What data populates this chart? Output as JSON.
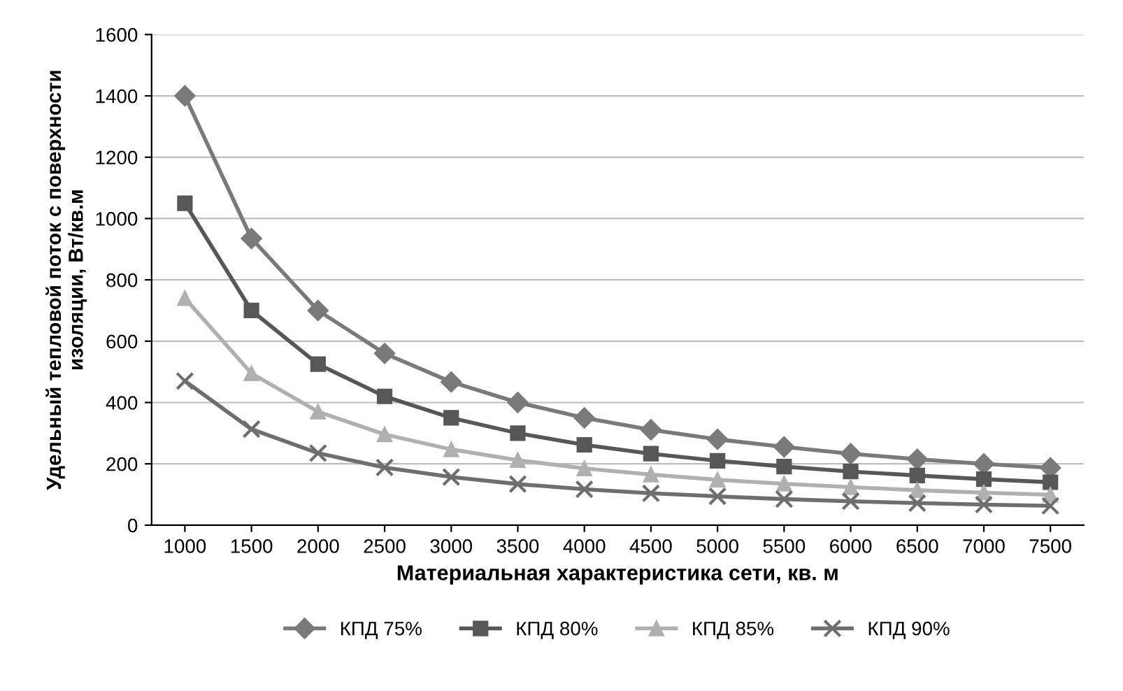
{
  "chart_data": {
    "type": "line",
    "xlabel": "Материальная характеристика сети, кв. м",
    "ylabel": "Удельный тепловой поток с поверхности\nизоляции, Вт/кв.м",
    "categories": [
      "1000",
      "1500",
      "2000",
      "2500",
      "3000",
      "3500",
      "4000",
      "4500",
      "5000",
      "5500",
      "6000",
      "6500",
      "7000",
      "7500"
    ],
    "series": [
      {
        "name": "КПД 75%",
        "color": "#7a7a7a",
        "marker": "diamond",
        "values": [
          1400,
          935,
          700,
          560,
          467,
          400,
          350,
          311,
          280,
          255,
          233,
          215,
          200,
          187
        ]
      },
      {
        "name": "КПД 80%",
        "color": "#575757",
        "marker": "square",
        "values": [
          1050,
          700,
          525,
          420,
          350,
          300,
          262,
          233,
          210,
          191,
          175,
          162,
          150,
          140
        ]
      },
      {
        "name": "КПД 85%",
        "color": "#b0b0b0",
        "marker": "triangle",
        "values": [
          740,
          495,
          370,
          296,
          247,
          212,
          185,
          165,
          148,
          135,
          124,
          114,
          106,
          99
        ]
      },
      {
        "name": "КПД 90%",
        "color": "#6e6e6e",
        "marker": "cross",
        "values": [
          470,
          313,
          235,
          188,
          157,
          134,
          117,
          104,
          94,
          85,
          78,
          72,
          67,
          63
        ]
      }
    ],
    "ylim": [
      0,
      1600
    ],
    "yticks": [
      0,
      200,
      400,
      600,
      800,
      1000,
      1200,
      1400,
      1600
    ],
    "grid": "y",
    "legend": "bottom",
    "line_style": "solid"
  }
}
